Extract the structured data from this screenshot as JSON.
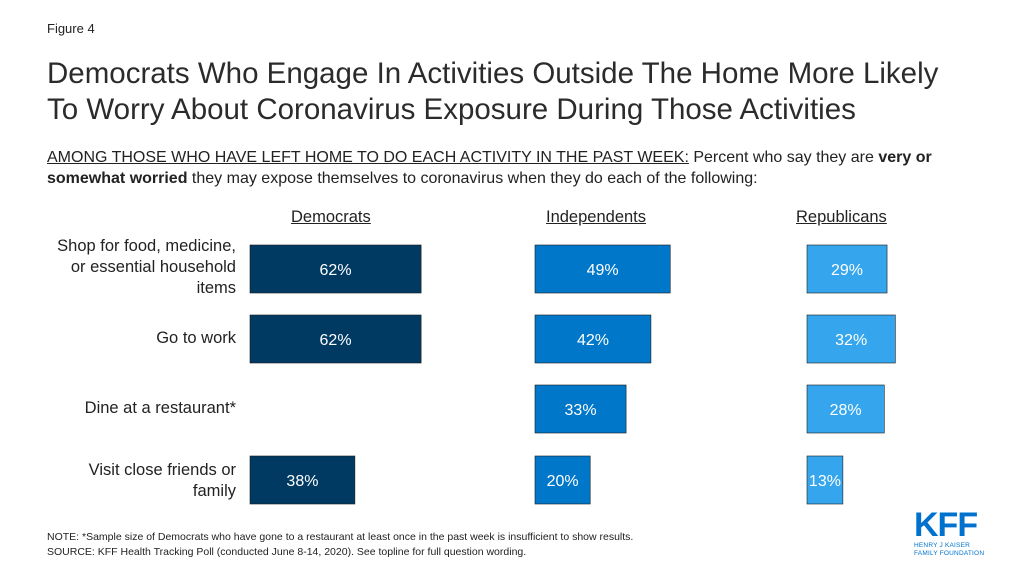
{
  "figure_label": "Figure 4",
  "title_line1": "Democrats Who Engage In Activities Outside The Home More Likely",
  "title_line2": "To Worry About Coronavirus Exposure During Those Activities",
  "subtitle": {
    "underlined": "AMONG THOSE WHO HAVE LEFT HOME TO DO EACH ACTIVITY IN THE PAST WEEK:",
    "part1": " Percent who say they are ",
    "bold": "very or somewhat worried",
    "part2": " they may expose themselves to coronavirus when they do each of the following:"
  },
  "notes": {
    "note": "NOTE: *Sample size of Democrats who have gone to a restaurant at least once in the past week is insufficient to show results.",
    "source": "SOURCE: KFF Health Tracking Poll (conducted June 8-14, 2020). See topline for full question wording."
  },
  "logo": {
    "text": "KFF",
    "sub1": "HENRY J KAISER",
    "sub2": "FAMILY FOUNDATION"
  },
  "chart_data": {
    "type": "bar",
    "orientation": "horizontal",
    "categories": [
      "Shop for food, medicine, or essential household items",
      "Go to work",
      "Dine at a restaurant*",
      "Visit close friends or family"
    ],
    "series": [
      {
        "name": "Democrats",
        "values": [
          62,
          62,
          null,
          38
        ],
        "labels": [
          "62%",
          "62%",
          "",
          "38%"
        ],
        "color": "#003a63"
      },
      {
        "name": "Independents",
        "values": [
          49,
          42,
          33,
          20
        ],
        "labels": [
          "49%",
          "42%",
          "33%",
          "20%"
        ],
        "color": "#0077c8"
      },
      {
        "name": "Republicans",
        "values": [
          29,
          32,
          28,
          13
        ],
        "labels": [
          "29%",
          "32%",
          "28%",
          "13%"
        ],
        "color": "#35a6ee"
      }
    ],
    "unit": "%",
    "xlim": [
      0,
      100
    ],
    "grid": false
  }
}
